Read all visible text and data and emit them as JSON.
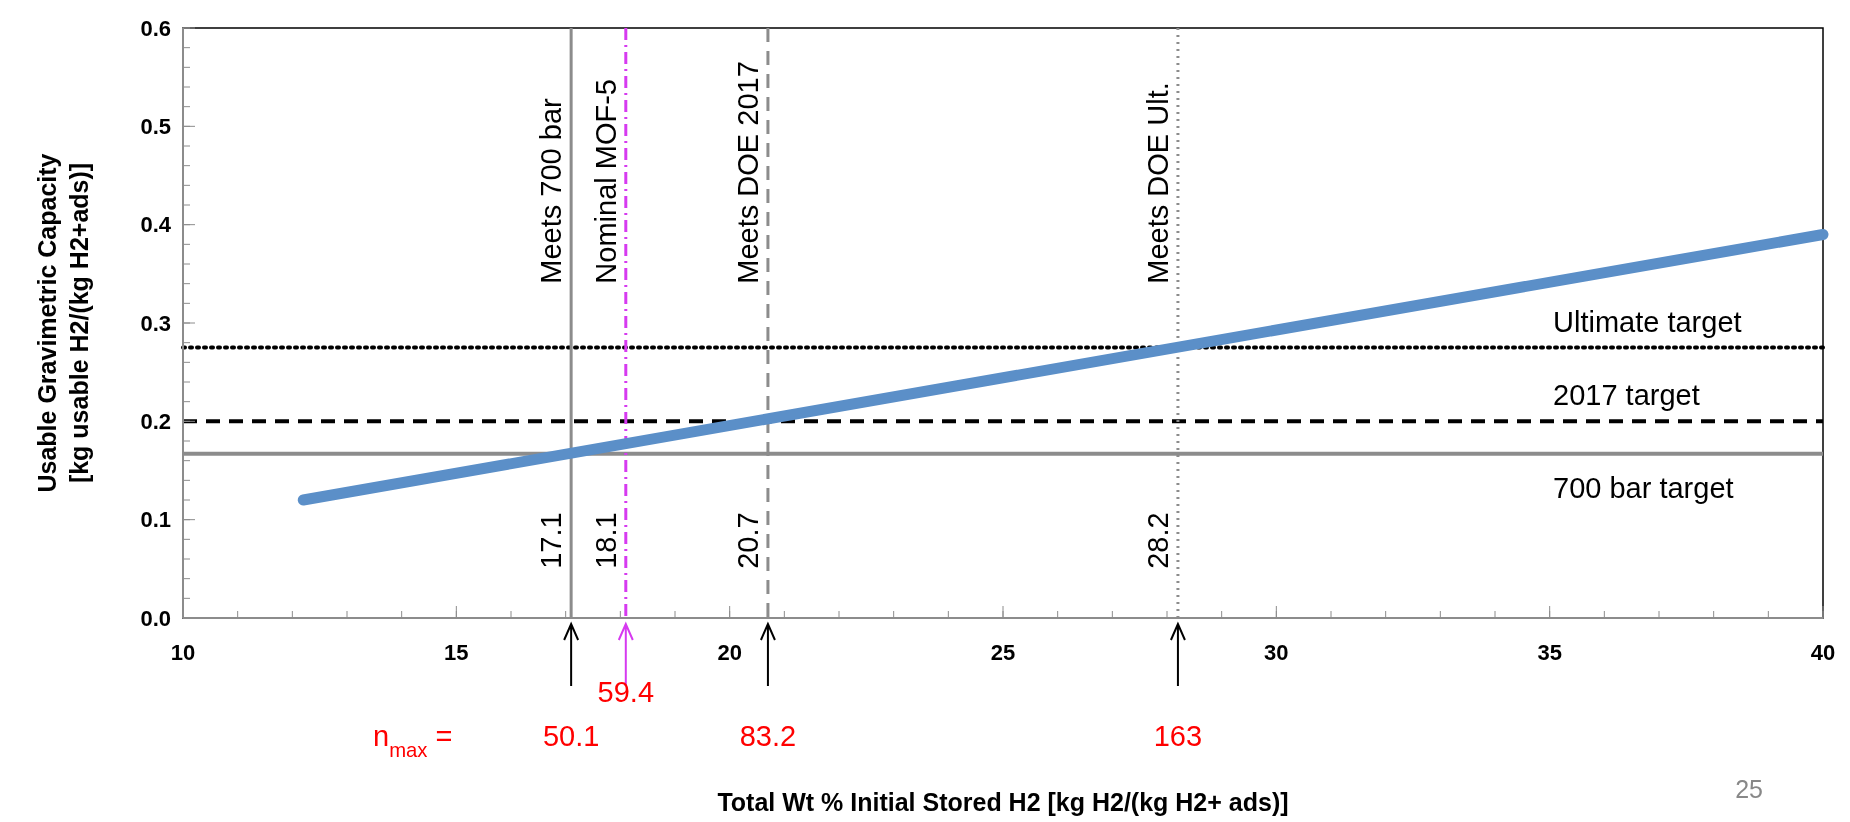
{
  "chart_data": {
    "type": "line",
    "xlabel": "Total Wt % Initial Stored H2 [kg H2/(kg H2+ ads)]",
    "ylabel": "Usable Gravimetric Capacity\n[kg usable H2/(kg H2+ads)]",
    "series": [
      {
        "color": "#5b8fc8",
        "x": [
          12.2,
          40
        ],
        "values": [
          0.12,
          0.39
        ]
      }
    ],
    "xlim": [
      10,
      40
    ],
    "xticks": [
      10,
      15,
      20,
      25,
      30,
      35,
      40
    ],
    "ylim": [
      0,
      0.6
    ],
    "yticks": [
      {
        "value": 0,
        "label": "0.0"
      },
      0.1,
      0.2,
      0.3,
      0.4,
      0.5,
      0.6
    ],
    "grid": false,
    "marker": "none",
    "line_style": "solid",
    "ref_lines": [
      {
        "axis": "y",
        "value": 0.167,
        "label": "700 bar target",
        "color": "#8c8c8c",
        "line_style": "solid"
      },
      {
        "axis": "y",
        "value": 0.2,
        "label": "2017 target",
        "color": "#000000",
        "line_style": "dashed"
      },
      {
        "axis": "y",
        "value": 0.275,
        "label": "Ultimate target",
        "color": "#000000",
        "line_style": "dotted"
      },
      {
        "axis": "x",
        "value": 17.1,
        "label": "Meets 700 bar",
        "color": "#8c8c8c",
        "line_style": "solid"
      },
      {
        "axis": "x",
        "value": 18.1,
        "label": "Nominal MOF-5",
        "color": "#d63af0",
        "line_style": "dashdot"
      },
      {
        "axis": "x",
        "value": 20.7,
        "label": "Meets DOE 2017",
        "color": "#8c8c8c",
        "line_style": "dashed"
      },
      {
        "axis": "x",
        "value": 28.2,
        "label": "Meets DOE Ult.",
        "color": "#8c8c8c",
        "line_style": "dotted"
      }
    ],
    "annotations": [
      {
        "text": "17.1",
        "x": 17.1,
        "y": 0.05
      },
      {
        "text": "18.1",
        "x": 18.1,
        "y": 0.05
      },
      {
        "text": "20.7",
        "x": 20.7,
        "y": 0.05
      },
      {
        "text": "28.2",
        "x": 28.2,
        "y": 0.05
      },
      "n$_{max}$ =",
      "50.1",
      "59.4",
      "83.2",
      "163",
      "25"
    ]
  }
}
